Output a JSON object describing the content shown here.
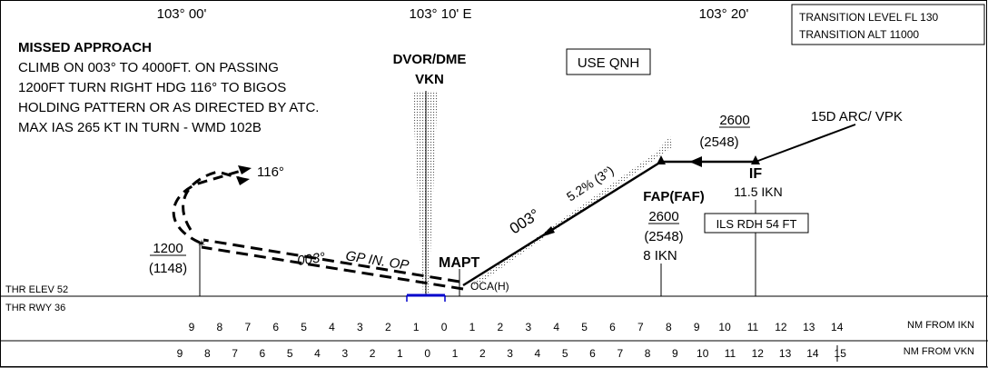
{
  "header": {
    "lon_left": "103° 00'",
    "lon_mid": "103° 10' E",
    "lon_right": "103° 20'",
    "transition_level": "TRANSITION LEVEL FL 130",
    "transition_alt": "TRANSITION ALT  11000"
  },
  "missed_approach": {
    "title": "MISSED APPROACH",
    "lines": [
      "CLIMB ON 003° TO 4000FT. ON PASSING",
      "1200FT  TURN RIGHT HDG 116°  TO BIGOS",
      "HOLDING PATTERN OR AS DIRECTED BY ATC.",
      "MAX IAS 265 KT IN TURN - WMD 102B"
    ]
  },
  "navaid": {
    "line1": "DVOR/DME",
    "line2": "VKN"
  },
  "use_qnh": "USE QNH",
  "arc": "15D ARC/ VPK",
  "if_fix": {
    "name": "IF",
    "alt": "2600",
    "alt_paren": "(2548)",
    "dist": "11.5 IKN"
  },
  "faf": {
    "name": "FAP(FAF)",
    "alt": "2600",
    "alt_paren": "(2548)",
    "dist": "8 IKN"
  },
  "ils_rdh": "ILS RDH 54 FT",
  "gradient": "5.2% (3°)",
  "course_inbound": "003°",
  "course_missed": "003°",
  "turn_heading": "116°",
  "gp_inop": "GP IN. OP",
  "mapt": "MAPT",
  "ocah": "OCA(H)",
  "turn_alt": {
    "alt": "1200",
    "alt_paren": "(1148)"
  },
  "thr_elev": "THR ELEV 52",
  "thr_rwy": "THR RWY 36",
  "scale_ikn": {
    "label": "NM FROM IKN",
    "ticks": [
      "9",
      "8",
      "7",
      "6",
      "5",
      "4",
      "3",
      "2",
      "1",
      "0",
      "1",
      "2",
      "3",
      "4",
      "5",
      "6",
      "7",
      "8",
      "9",
      "10",
      "11",
      "12",
      "13",
      "14"
    ]
  },
  "scale_vkn": {
    "label": "NM FROM VKN",
    "ticks": [
      "9",
      "8",
      "7",
      "6",
      "5",
      "4",
      "3",
      "2",
      "1",
      "0",
      "1",
      "2",
      "3",
      "4",
      "5",
      "6",
      "7",
      "8",
      "9",
      "10",
      "11",
      "12",
      "13",
      "14",
      "15"
    ]
  }
}
